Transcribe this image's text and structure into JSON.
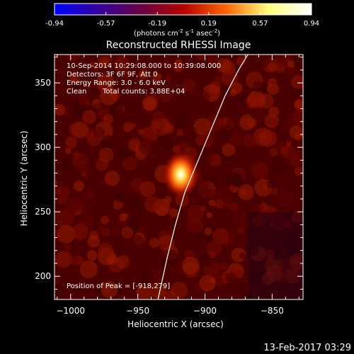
{
  "chart_data": {
    "type": "heatmap",
    "title": "Reconstructed RHESSI Image",
    "xlabel": "Heliocentric X (arcsec)",
    "ylabel": "Heliocentric Y (arcsec)",
    "xlim": [
      -1012,
      -827
    ],
    "ylim": [
      182,
      372
    ],
    "xticks": [
      -1000,
      -950,
      -900,
      -850
    ],
    "yticks": [
      200,
      250,
      300,
      350
    ],
    "colorbar": {
      "min": -0.94,
      "max": 0.94,
      "ticks": [
        "-0.94",
        "-0.57",
        "-0.19",
        "0.19",
        "0.57",
        "0.94"
      ],
      "unit_prefix": "(photons cm",
      "unit_exp1": "-2",
      "unit_mid1": " s",
      "unit_exp2": "-1",
      "unit_mid2": " asec",
      "unit_exp3": "-2",
      "unit_suffix": ")",
      "colors": [
        "#0000ff",
        "#3300a0",
        "#660044",
        "#b40000",
        "#ff6400",
        "#ffff80",
        "#ffffff"
      ]
    },
    "info_lines": [
      "10-Sep-2014 10:29:08.000 to 10:39:08.000",
      "Detectors: 3F 6F 9F, Att 0",
      "Energy Range: 3.0 - 6.0 keV"
    ],
    "clean_label": "Clean",
    "total_counts": "Total counts: 3.88E+04",
    "peak_text": "Position of Peak = [-918,279]",
    "peak": {
      "x": -918,
      "y": 279,
      "value": 0.94
    },
    "limb_points": [
      [
        -935,
        182
      ],
      [
        -928,
        215
      ],
      [
        -922,
        240
      ],
      [
        -915,
        265
      ],
      [
        -905,
        290
      ],
      [
        -895,
        315
      ],
      [
        -885,
        340
      ],
      [
        -875,
        360
      ],
      [
        -868,
        372
      ]
    ],
    "limb_color": "#ffffff",
    "background_color": "#4a0000"
  },
  "timestamp": "13-Feb-2017 03:29"
}
